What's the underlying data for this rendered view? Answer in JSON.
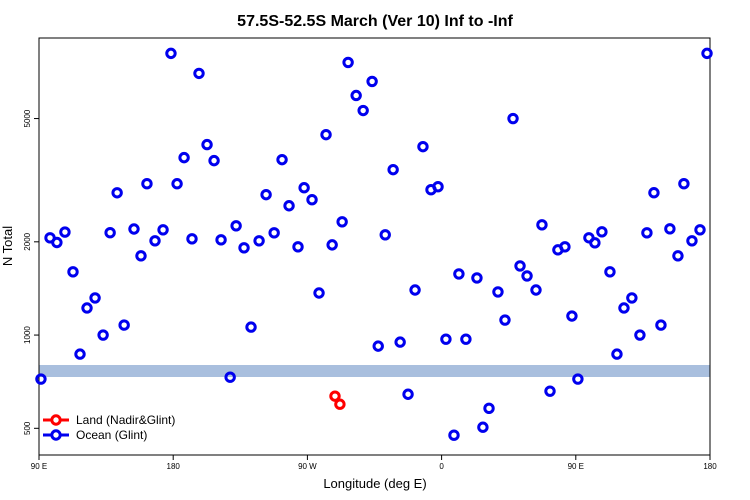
{
  "chart_data": {
    "type": "scatter",
    "title": "57.5S-52.5S March (Ver 10)   Inf to -Inf",
    "x_label": "Longitude (deg E)",
    "y_label": "N Total",
    "log_y": true,
    "legend": "lower left",
    "xlim": [
      90,
      540
    ],
    "xticks": [
      {
        "value": 90,
        "label": "90 E"
      },
      180,
      {
        "value": 270,
        "label": "90 W"
      },
      {
        "value": 360,
        "label": "0"
      },
      {
        "value": 450,
        "label": "90 E"
      },
      {
        "value": 540,
        "label": "180"
      }
    ],
    "ylim": [
      410,
      9100
    ],
    "yticks": [
      500,
      1000,
      2000,
      5000
    ],
    "series": [
      {
        "name": "Land (Nadir&Glint)",
        "color": "#ff0000",
        "x": [
          288.5,
          291.8
        ],
        "values": [
          635,
          598
        ]
      },
      {
        "name": "Ocean (Glint)",
        "color": "#0000ee",
        "x": [
          91.3,
          97.4,
          102,
          107.4,
          112.8,
          117.5,
          122.2,
          127.6,
          133,
          137.7,
          142.4,
          147.1,
          153.7,
          158.4,
          162.4,
          167.8,
          173.2,
          178.5,
          182.6,
          187.3,
          192.6,
          197.3,
          202.7,
          207.4,
          212.1,
          218.2,
          222.2,
          227.5,
          232.2,
          237.6,
          242.3,
          247.7,
          253,
          257.7,
          263.7,
          267.8,
          273.1,
          277.8,
          282.5,
          286.6,
          293.3,
          297.3,
          302.7,
          307.4,
          313.4,
          317.5,
          322.2,
          327.5,
          332.2,
          337.5,
          342.2,
          347.5,
          352.9,
          357.6,
          362.9,
          368.3,
          371.6,
          376.3,
          383.7,
          387.7,
          391.8,
          397.8,
          402.5,
          407.9,
          412.6,
          417.3,
          423.3,
          427.3,
          432.7,
          438,
          442.7,
          447.4,
          451.4,
          458.8,
          462.8,
          467.5,
          472.9,
          477.6,
          482.3,
          487.6,
          493,
          497.7,
          502.4,
          507.1,
          513.1,
          518.5,
          522.5,
          527.9,
          533.3,
          538
        ],
        "values": [
          721,
          2060,
          1990,
          2150,
          1600,
          868,
          1223,
          1318,
          1000,
          2140,
          2880,
          1077,
          2200,
          1802,
          3081,
          2015,
          2187,
          8117,
          3080,
          3740,
          2045,
          6995,
          4120,
          3657,
          2030,
          731,
          2253,
          1913,
          1061,
          2015,
          2840,
          2138,
          3684,
          2615,
          1927,
          2990,
          2735,
          1367,
          4436,
          1955,
          2321,
          7590,
          5936,
          5308,
          6590,
          921,
          2107,
          3420,
          949,
          644,
          1398,
          4058,
          2946,
          3013,
          970,
          475,
          1575,
          970,
          1529,
          504,
          580,
          1378,
          1118,
          5000,
          1672,
          1552,
          1398,
          2269,
          659,
          1884,
          1927,
          1152,
          721,
          2061,
          1985,
          2154,
          1600,
          868,
          1223,
          1318,
          1000,
          2138,
          2881,
          1077,
          2203,
          1802,
          3081,
          2015,
          2187,
          8117
        ]
      }
    ]
  }
}
